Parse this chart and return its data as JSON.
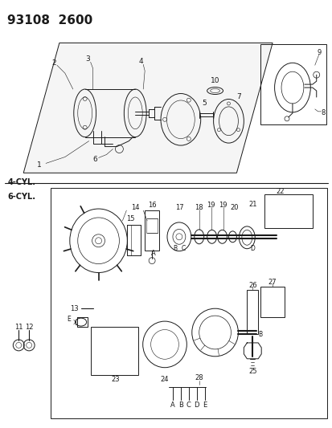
{
  "title": "93108  2600",
  "bg_color": "#ffffff",
  "line_color": "#1a1a1a",
  "label_4cyl": "4-CYL.",
  "label_6cyl": "6-CYL.",
  "figsize": [
    4.14,
    5.33
  ],
  "dpi": 100
}
